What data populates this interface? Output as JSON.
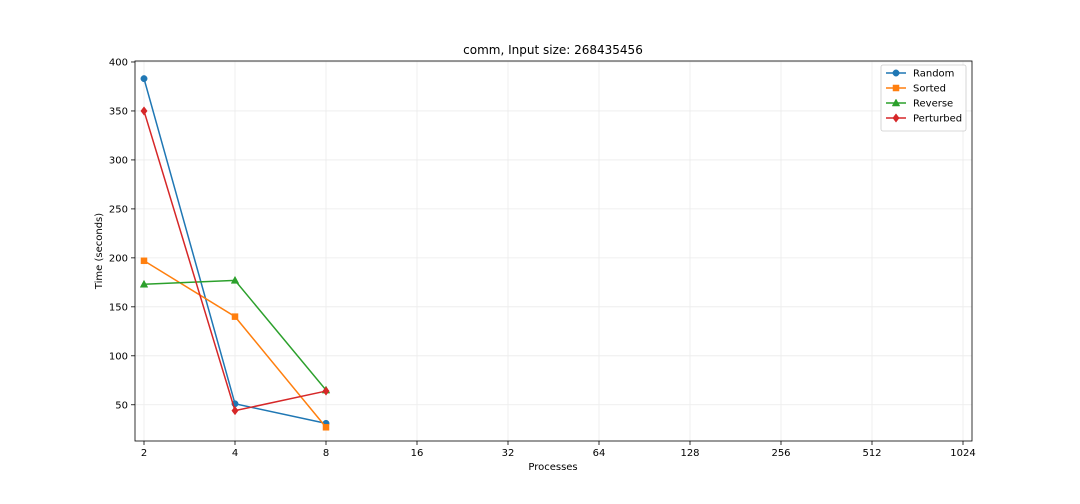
{
  "chart_data": {
    "type": "line",
    "title": "comm, Input size: 268435456",
    "xlabel": "Processes",
    "ylabel": "Time (seconds)",
    "x_scale": "log2",
    "x_ticks": [
      2,
      4,
      8,
      16,
      32,
      64,
      128,
      256,
      512,
      1024
    ],
    "x_tick_labels": [
      "2",
      "4",
      "8",
      "16",
      "32",
      "64",
      "128",
      "256",
      "512",
      "1024"
    ],
    "y_ticks": [
      50,
      100,
      150,
      200,
      250,
      300,
      350,
      400
    ],
    "y_tick_labels": [
      "50",
      "100",
      "150",
      "200",
      "250",
      "300",
      "350",
      "400"
    ],
    "xlim": [
      2,
      1024
    ],
    "ylim": [
      13,
      401
    ],
    "grid": true,
    "legend_position": "top-right",
    "series": [
      {
        "name": "Random",
        "color": "#1f77b4",
        "marker": "circle",
        "x": [
          2,
          4,
          8
        ],
        "y": [
          383,
          51,
          31
        ]
      },
      {
        "name": "Sorted",
        "color": "#ff7f0e",
        "marker": "square",
        "x": [
          2,
          4,
          8
        ],
        "y": [
          197,
          140,
          27
        ]
      },
      {
        "name": "Reverse",
        "color": "#2ca02c",
        "marker": "triangle",
        "x": [
          2,
          4,
          8
        ],
        "y": [
          173,
          177,
          65
        ]
      },
      {
        "name": "Perturbed",
        "color": "#d62728",
        "marker": "diamond",
        "x": [
          2,
          4,
          8
        ],
        "y": [
          350,
          44,
          64
        ]
      }
    ]
  }
}
